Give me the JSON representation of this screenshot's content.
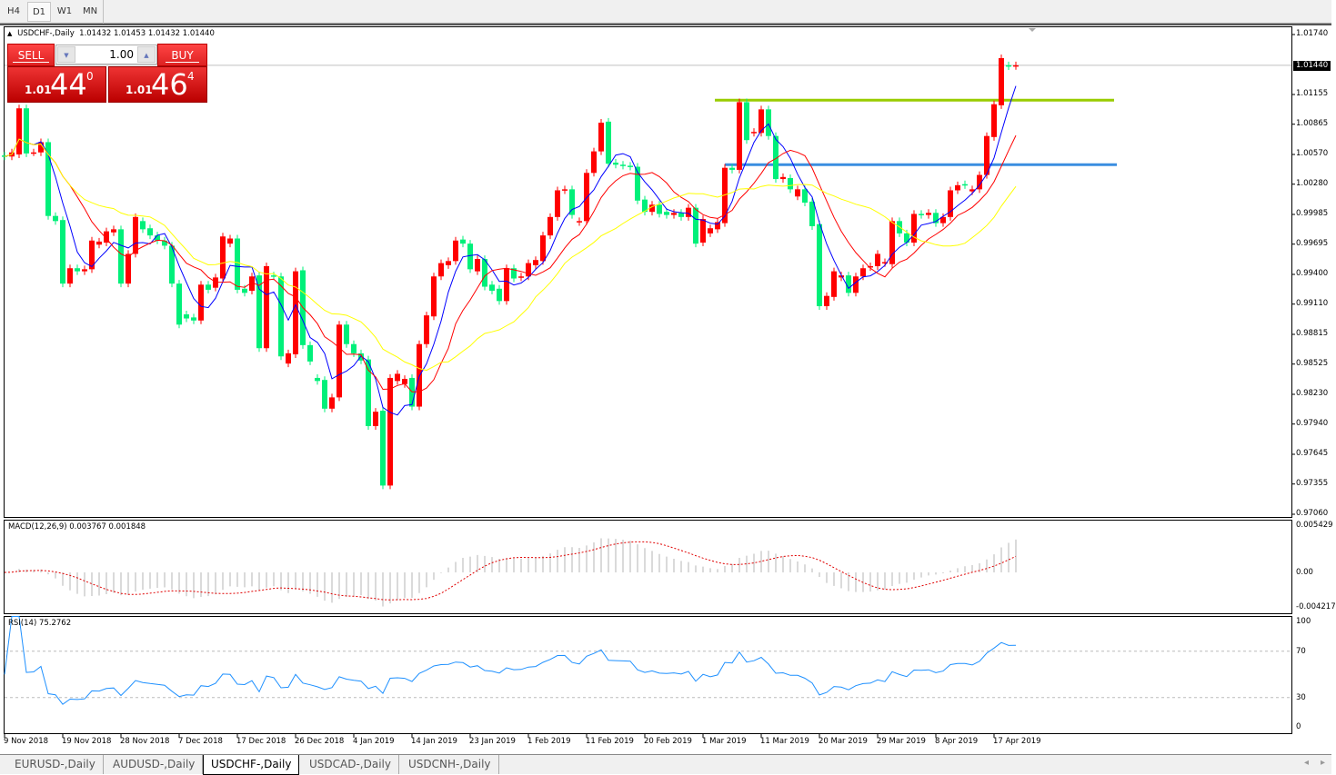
{
  "timeframe_tabs": [
    {
      "label": "H4"
    },
    {
      "label": "D1",
      "active": true
    },
    {
      "label": "W1"
    },
    {
      "label": "MN"
    }
  ],
  "chart": {
    "symbol_title": "USDCHF-,Daily",
    "ohlc": "1.01432 1.01453 1.01432 1.01440",
    "current_price": "1.01440"
  },
  "trade_panel": {
    "sell_label": "SELL",
    "buy_label": "BUY",
    "lot": "1.00",
    "sell_price": {
      "prefix": "1.01",
      "big": "44",
      "sup": "0"
    },
    "buy_price": {
      "prefix": "1.01",
      "big": "46",
      "sup": "4"
    }
  },
  "price_axis": [
    "1.01740",
    "1.01155",
    "1.00865",
    "1.00570",
    "1.00280",
    "0.99985",
    "0.99695",
    "0.99400",
    "0.99110",
    "0.98815",
    "0.98525",
    "0.98230",
    "0.97940",
    "0.97645",
    "0.97355",
    "0.97060"
  ],
  "macd": {
    "label": "MACD(12,26,9) 0.003767 0.001848",
    "axis": [
      "0.005429",
      "0.00",
      "-0.004217"
    ]
  },
  "rsi": {
    "label": "RSI(14) 75.2762",
    "axis": [
      "100",
      "70",
      "30",
      "0"
    ]
  },
  "date_labels": [
    "9 Nov 2018",
    "19 Nov 2018",
    "28 Nov 2018",
    "7 Dec 2018",
    "17 Dec 2018",
    "26 Dec 2018",
    "4 Jan 2019",
    "14 Jan 2019",
    "23 Jan 2019",
    "1 Feb 2019",
    "11 Feb 2019",
    "20 Feb 2019",
    "1 Mar 2019",
    "11 Mar 2019",
    "20 Mar 2019",
    "29 Mar 2019",
    "8 Apr 2019",
    "17 Apr 2019"
  ],
  "symbol_tabs": [
    {
      "label": "EURUSD-,Daily"
    },
    {
      "label": "AUDUSD-,Daily"
    },
    {
      "label": "USDCHF-,Daily",
      "active": true
    },
    {
      "label": "USDCAD-,Daily"
    },
    {
      "label": "USDCNH-,Daily"
    }
  ],
  "chart_data": {
    "type": "candlestick",
    "ylim": [
      0.9706,
      1.0174
    ],
    "candle_format": "[open, close]",
    "up_color": "#ff0000",
    "down_color": "#00f07a",
    "ma_colors": [
      "#0000ff",
      "#ff0000",
      "#ffff00"
    ],
    "horizontal_lines": [
      {
        "price": 1.011,
        "color": "#99cc00"
      },
      {
        "price": 1.0047,
        "color": "#3a8ee0"
      }
    ],
    "rsi_levels": [
      70,
      30
    ],
    "candles": [
      [
        1.0056,
        1.0055
      ],
      [
        1.0055,
        1.0059
      ],
      [
        1.0057,
        1.0102
      ],
      [
        1.0102,
        1.0058
      ],
      [
        1.0059,
        1.0059
      ],
      [
        1.0059,
        1.0069
      ],
      [
        1.0069,
        0.9997
      ],
      [
        0.9997,
        0.9992
      ],
      [
        0.9993,
        0.9931
      ],
      [
        0.9931,
        0.9946
      ],
      [
        0.9946,
        0.9943
      ],
      [
        0.9943,
        0.9945
      ],
      [
        0.9945,
        0.9973
      ],
      [
        0.9969,
        0.9972
      ],
      [
        0.9971,
        0.9982
      ],
      [
        0.9981,
        0.9984
      ],
      [
        0.9984,
        0.9931
      ],
      [
        0.9931,
        0.996
      ],
      [
        0.996,
        0.9996
      ],
      [
        0.9992,
        0.9984
      ],
      [
        0.9985,
        0.9978
      ],
      [
        0.9978,
        0.9973
      ],
      [
        0.9973,
        0.9968
      ],
      [
        0.9968,
        0.9931
      ],
      [
        0.9931,
        0.9891
      ],
      [
        0.9901,
        0.9897
      ],
      [
        0.9898,
        0.9895
      ],
      [
        0.9895,
        0.993
      ],
      [
        0.993,
        0.9925
      ],
      [
        0.9927,
        0.9937
      ],
      [
        0.9936,
        0.9977
      ],
      [
        0.997,
        0.9975
      ],
      [
        0.9975,
        0.9925
      ],
      [
        0.9926,
        0.9922
      ],
      [
        0.9924,
        0.9938
      ],
      [
        0.9939,
        0.9868
      ],
      [
        0.9868,
        0.9948
      ],
      [
        0.9939,
        0.9938
      ],
      [
        0.9938,
        0.986
      ],
      [
        0.9853,
        0.9863
      ],
      [
        0.9862,
        0.9943
      ],
      [
        0.9944,
        0.9871
      ],
      [
        0.9871,
        0.9855
      ],
      [
        0.9839,
        0.9836
      ],
      [
        0.9837,
        0.9809
      ],
      [
        0.9809,
        0.982
      ],
      [
        0.982,
        0.9891
      ],
      [
        0.9891,
        0.9872
      ],
      [
        0.9872,
        0.9863
      ],
      [
        0.9863,
        0.9856
      ],
      [
        0.9857,
        0.9792
      ],
      [
        0.9792,
        0.9806
      ],
      [
        0.9807,
        0.9734
      ],
      [
        0.9734,
        0.9839
      ],
      [
        0.9836,
        0.9843
      ],
      [
        0.9833,
        0.9838
      ],
      [
        0.9839,
        0.9811
      ],
      [
        0.9811,
        0.9872
      ],
      [
        0.9872,
        0.99
      ],
      [
        0.9899,
        0.9938
      ],
      [
        0.9938,
        0.9951
      ],
      [
        0.9949,
        0.9953
      ],
      [
        0.9953,
        0.9973
      ],
      [
        0.9974,
        0.997
      ],
      [
        0.997,
        0.9945
      ],
      [
        0.9943,
        0.9955
      ],
      [
        0.9955,
        0.9928
      ],
      [
        0.993,
        0.9924
      ],
      [
        0.9926,
        0.9914
      ],
      [
        0.9914,
        0.9946
      ],
      [
        0.9946,
        0.9936
      ],
      [
        0.9937,
        0.9938
      ],
      [
        0.9938,
        0.9951
      ],
      [
        0.9949,
        0.9954
      ],
      [
        0.9953,
        0.9978
      ],
      [
        0.9978,
        0.9996
      ],
      [
        0.9996,
        1.0022
      ],
      [
        1.0022,
        1.0023
      ],
      [
        1.0023,
        0.9998
      ],
      [
        0.9991,
        0.9992
      ],
      [
        0.9992,
        1.0039
      ],
      [
        1.0039,
        1.006
      ],
      [
        1.006,
        1.0088
      ],
      [
        1.0089,
        1.0048
      ],
      [
        1.0049,
        1.0047
      ],
      [
        1.0047,
        1.0046
      ],
      [
        1.0046,
        1.0045
      ],
      [
        1.0045,
        1.0012
      ],
      [
        1.0013,
        1.0001
      ],
      [
        1.0001,
        1.0008
      ],
      [
        1.0008,
        0.9999
      ],
      [
        1.0001,
        0.9998
      ],
      [
        0.9998,
        1.0
      ],
      [
        1.0,
        0.9996
      ],
      [
        0.9996,
        1.0005
      ],
      [
        1.0005,
        0.997
      ],
      [
        0.9971,
        0.9994
      ],
      [
        0.998,
        0.9985
      ],
      [
        0.9984,
        0.9991
      ],
      [
        0.999,
        1.0044
      ],
      [
        1.0044,
        1.0042
      ],
      [
        1.0042,
        1.0108
      ],
      [
        1.0108,
        1.0071
      ],
      [
        1.0078,
        1.0079
      ],
      [
        1.0078,
        1.0101
      ],
      [
        1.0101,
        1.0075
      ],
      [
        1.0075,
        1.0033
      ],
      [
        1.0033,
        1.0035
      ],
      [
        1.0034,
        1.0023
      ],
      [
        1.0016,
        1.0023
      ],
      [
        1.0023,
        1.001
      ],
      [
        1.0011,
        0.9987
      ],
      [
        0.9989,
        0.9909
      ],
      [
        0.9909,
        0.9919
      ],
      [
        0.9918,
        0.9943
      ],
      [
        0.9937,
        0.9939
      ],
      [
        0.9939,
        0.9922
      ],
      [
        0.9922,
        0.9938
      ],
      [
        0.9938,
        0.9946
      ],
      [
        0.9947,
        0.9948
      ],
      [
        0.9948,
        0.996
      ],
      [
        0.9951,
        0.9952
      ],
      [
        0.995,
        0.9992
      ],
      [
        0.9992,
        0.998
      ],
      [
        0.998,
        0.9971
      ],
      [
        0.9971,
        0.9999
      ],
      [
        0.9999,
        0.9998
      ],
      [
        0.9998,
        1.0
      ],
      [
        1.0,
        0.999
      ],
      [
        0.999,
        0.9996
      ],
      [
        0.9996,
        1.0022
      ],
      [
        1.0022,
        1.0027
      ],
      [
        1.0028,
        1.0027
      ],
      [
        1.0021,
        1.0023
      ],
      [
        1.0023,
        1.0037
      ],
      [
        1.0037,
        1.0075
      ],
      [
        1.0074,
        1.0106
      ],
      [
        1.0105,
        1.0151
      ],
      [
        1.0144,
        1.0143
      ],
      [
        1.01432,
        1.0144
      ]
    ]
  }
}
